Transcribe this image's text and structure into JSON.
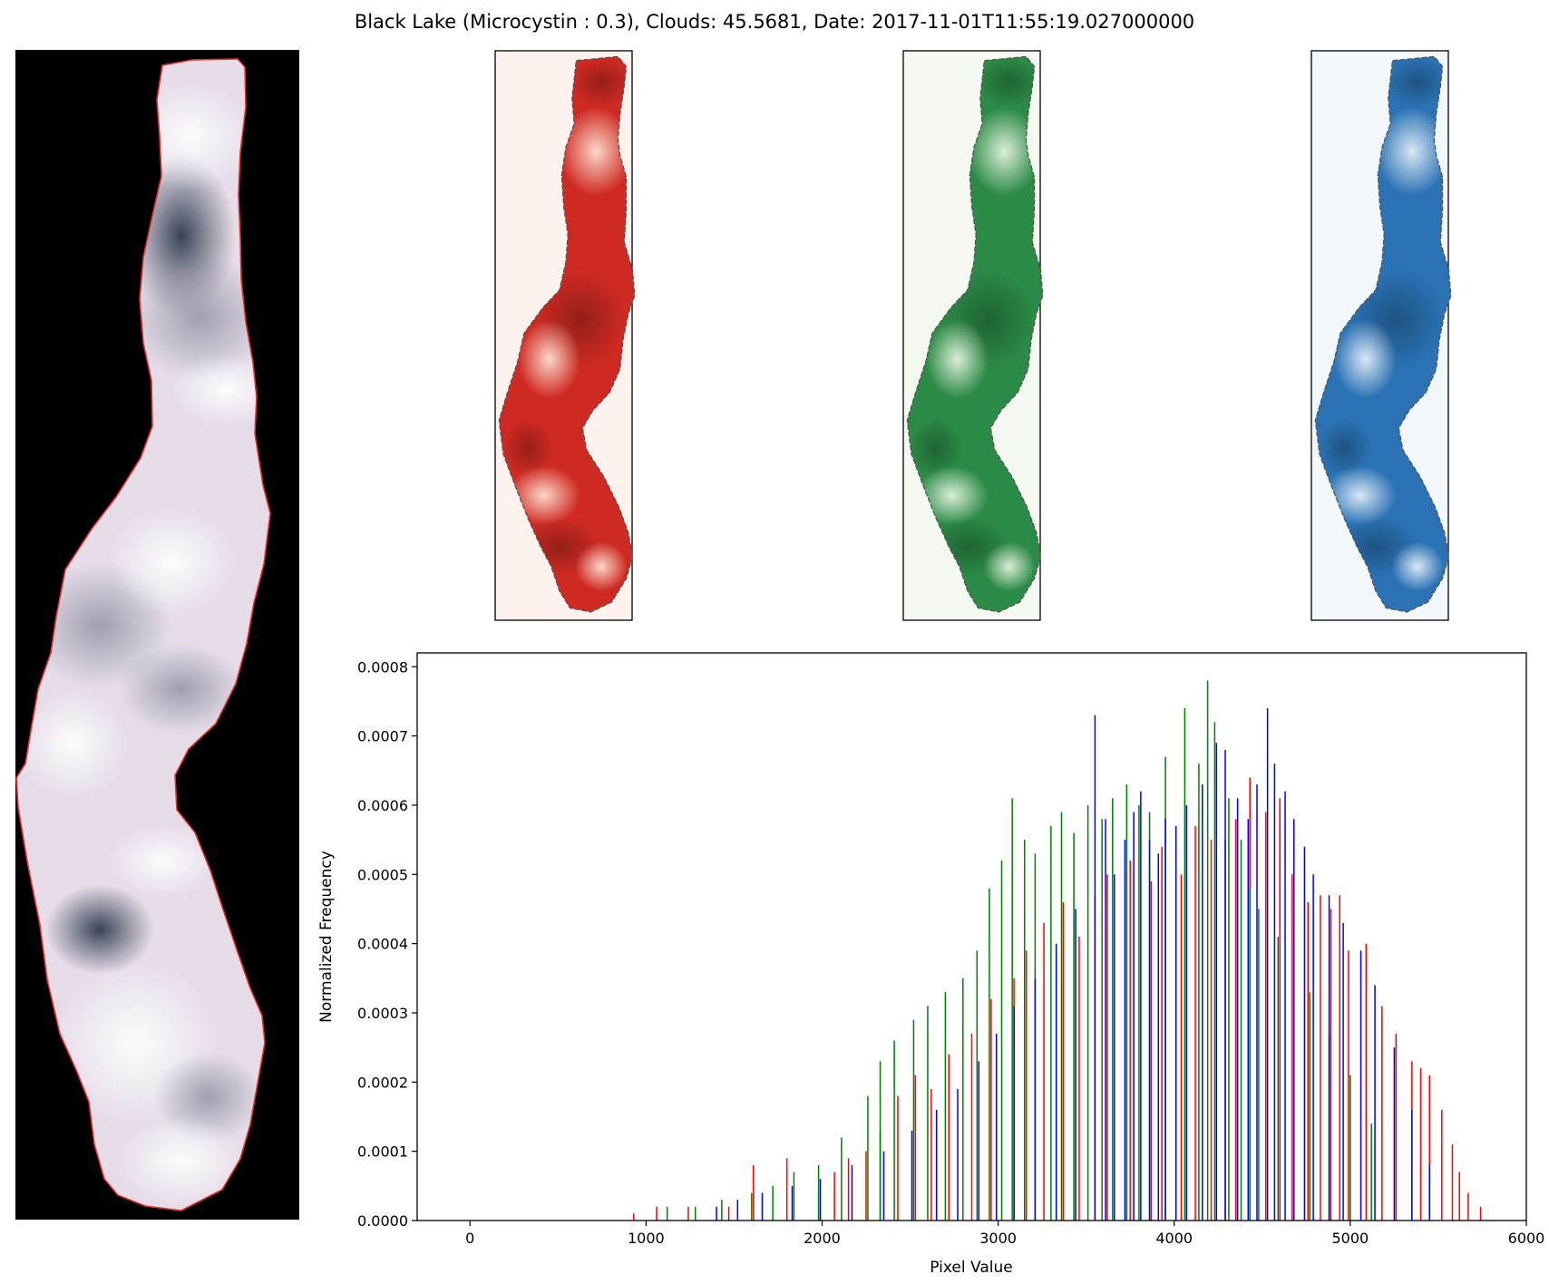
{
  "figure": {
    "title": "Black Lake (Microcystin : 0.3), Clouds: 45.5681, Date: 2017-11-01T11:55:19.027000000"
  },
  "panels": {
    "rgb_image": {
      "background": "#000000",
      "outline_color": "#e03030",
      "fill_color": "#ece4ee"
    },
    "channel_maps": [
      {
        "channel": "red",
        "colormap": "Reds",
        "background": "#fdf2ee",
        "dark": "#b0161a",
        "light": "#fcbca4"
      },
      {
        "channel": "green",
        "colormap": "Greens",
        "background": "#f4faf2",
        "dark": "#0b6b2e",
        "light": "#c9ebc2"
      },
      {
        "channel": "blue",
        "colormap": "Blues",
        "background": "#f3f8fd",
        "dark": "#0f5aa0",
        "light": "#b8d6ec"
      }
    ]
  },
  "chart_data": {
    "type": "bar",
    "title": "",
    "xlabel": "Pixel Value",
    "ylabel": "Normalized Frequency",
    "xlim": [
      -300,
      6000
    ],
    "ylim": [
      0,
      0.00082
    ],
    "xticks": [
      0,
      1000,
      2000,
      3000,
      4000,
      5000,
      6000
    ],
    "yticks": [
      0.0,
      0.0001,
      0.0002,
      0.0003,
      0.0004,
      0.0005,
      0.0006,
      0.0007,
      0.0008
    ],
    "ytick_labels": [
      "0.0000",
      "0.0001",
      "0.0002",
      "0.0003",
      "0.0004",
      "0.0005",
      "0.0006",
      "0.0007",
      "0.0008"
    ],
    "grid": false,
    "legend": false,
    "series": [
      {
        "color": "#ff0000",
        "x": [
          930,
          1060,
          1240,
          1470,
          1610,
          1800,
          2070,
          2150,
          2250,
          2330,
          2430,
          2530,
          2620,
          2720,
          2850,
          2960,
          3090,
          3160,
          3260,
          3370,
          3460,
          3550,
          3620,
          3750,
          3870,
          3930,
          4040,
          4120,
          4210,
          4290,
          4350,
          4430,
          4520,
          4600,
          4670,
          4760,
          4830,
          4890,
          4940,
          4990,
          5090,
          5180,
          5260,
          5350,
          5400,
          5450,
          5520,
          5580,
          5620,
          5670,
          5740
        ],
        "values": [
          1e-05,
          2e-05,
          2e-05,
          2e-05,
          8e-05,
          9e-05,
          7e-05,
          9e-05,
          0.0001,
          0.00013,
          0.00018,
          0.00021,
          0.00019,
          0.00024,
          0.00027,
          0.00032,
          0.00035,
          0.00039,
          0.00043,
          0.00046,
          0.00041,
          0.00047,
          0.0005,
          0.00052,
          0.00049,
          0.00054,
          0.0005,
          0.00057,
          0.00055,
          0.00055,
          0.00058,
          0.00064,
          0.00059,
          0.00061,
          0.0005,
          0.00046,
          0.00047,
          0.00045,
          0.00047,
          0.00039,
          0.0004,
          0.00031,
          0.00027,
          0.00023,
          0.00022,
          0.00021,
          0.00016,
          0.00011,
          7e-05,
          4e-05,
          2e-05
        ]
      },
      {
        "color": "#008000",
        "x": [
          1120,
          1280,
          1430,
          1600,
          1720,
          1840,
          1980,
          2110,
          2260,
          2330,
          2410,
          2520,
          2600,
          2700,
          2800,
          2880,
          2950,
          3020,
          3080,
          3150,
          3210,
          3300,
          3360,
          3430,
          3510,
          3590,
          3650,
          3730,
          3800,
          3860,
          3950,
          4060,
          4140,
          4190,
          4230,
          4310,
          4380,
          4430,
          4480,
          4590,
          4680,
          4770,
          4880,
          5000,
          5120
        ],
        "values": [
          2e-05,
          2e-05,
          3e-05,
          4e-05,
          5e-05,
          7e-05,
          8e-05,
          0.00012,
          0.00018,
          0.00023,
          0.00026,
          0.00029,
          0.00031,
          0.00033,
          0.00035,
          0.00039,
          0.00048,
          0.00052,
          0.00061,
          0.00055,
          0.00053,
          0.00057,
          0.00059,
          0.00056,
          0.0006,
          0.00058,
          0.00061,
          0.00063,
          0.0006,
          0.00059,
          0.00067,
          0.00074,
          0.00066,
          0.00078,
          0.00072,
          0.00061,
          0.00055,
          0.00048,
          0.00045,
          0.00041,
          0.00036,
          0.00033,
          0.00027,
          0.00021,
          0.00014
        ]
      },
      {
        "color": "#0000ff",
        "x": [
          1400,
          1520,
          1660,
          1830,
          1990,
          2170,
          2350,
          2510,
          2650,
          2770,
          2890,
          2990,
          3090,
          3210,
          3330,
          3440,
          3550,
          3610,
          3660,
          3720,
          3770,
          3810,
          3860,
          3910,
          3950,
          4010,
          4070,
          4160,
          4240,
          4290,
          4360,
          4420,
          4470,
          4530,
          4570,
          4630,
          4680,
          4740,
          4790,
          4880,
          4960,
          5060,
          5140,
          5250,
          5350,
          5450
        ],
        "values": [
          2e-05,
          3e-05,
          4e-05,
          5e-05,
          6e-05,
          8e-05,
          0.0001,
          0.00013,
          0.00016,
          0.00019,
          0.00023,
          0.00027,
          0.00031,
          0.00035,
          0.0004,
          0.00045,
          0.00073,
          0.00058,
          0.0005,
          0.00055,
          0.00059,
          0.00062,
          0.00055,
          0.00053,
          0.00058,
          0.00057,
          0.0006,
          0.00063,
          0.00069,
          0.00068,
          0.00061,
          0.00058,
          0.00063,
          0.00074,
          0.00066,
          0.00062,
          0.00058,
          0.00054,
          0.0005,
          0.00047,
          0.00043,
          0.00039,
          0.00034,
          0.00025,
          0.00016,
          8e-05
        ]
      }
    ]
  }
}
